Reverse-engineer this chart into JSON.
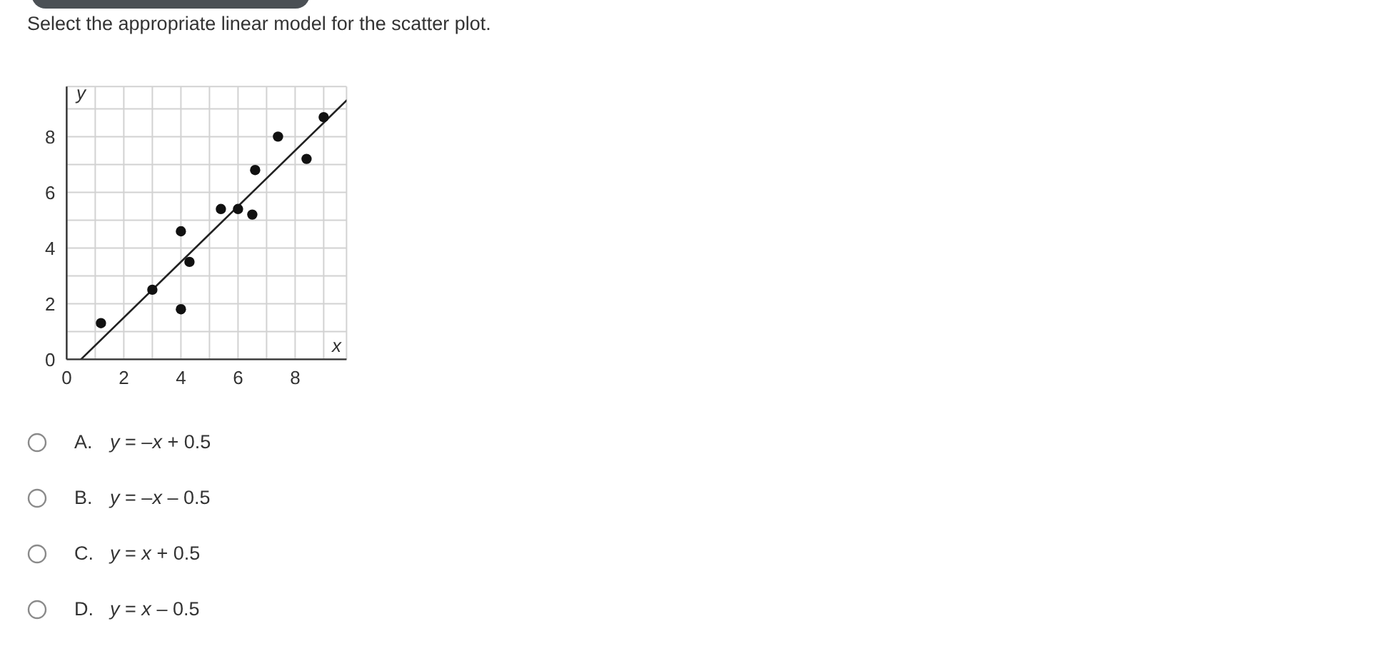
{
  "chart_data": {
    "type": "scatter",
    "title": "Select the appropriate linear model for the scatter plot.",
    "xlabel": "x",
    "ylabel": "y",
    "series": [
      {
        "color": "#111111",
        "marker": "circle",
        "x": [
          1.2,
          3,
          4,
          4.3,
          4,
          5.4,
          6,
          6.5,
          6.6,
          7.4,
          8.4,
          9
        ],
        "values": [
          1.3,
          2.5,
          4.6,
          3.5,
          1.8,
          5.4,
          5.4,
          5.2,
          6.8,
          8,
          7.2,
          8.7
        ]
      },
      {
        "type": "line",
        "color": "#222222",
        "x": [
          0.5,
          9.8
        ],
        "values": [
          0,
          9.3
        ],
        "line_style": "solid"
      }
    ],
    "xlim": [
      0,
      9.8
    ],
    "ylim": [
      0,
      9.8
    ],
    "xticks": [
      0,
      {
        "value": 1,
        "label": null
      },
      2,
      {
        "value": 3,
        "label": null
      },
      4,
      {
        "value": 5,
        "label": null
      },
      6,
      {
        "value": 7,
        "label": null
      },
      8,
      {
        "value": 9,
        "label": null
      }
    ],
    "yticks": [
      0,
      {
        "value": 1,
        "label": null
      },
      2,
      {
        "value": 3,
        "label": null
      },
      4,
      {
        "value": 5,
        "label": null
      },
      6,
      {
        "value": 7,
        "label": null
      },
      8,
      {
        "value": 9,
        "label": null
      }
    ],
    "grid": true,
    "annotations": [
      "A. y = –x + 0.5",
      "B. y = –x – 0.5",
      "C. y = x + 0.5",
      "D. y = x – 0.5"
    ]
  }
}
